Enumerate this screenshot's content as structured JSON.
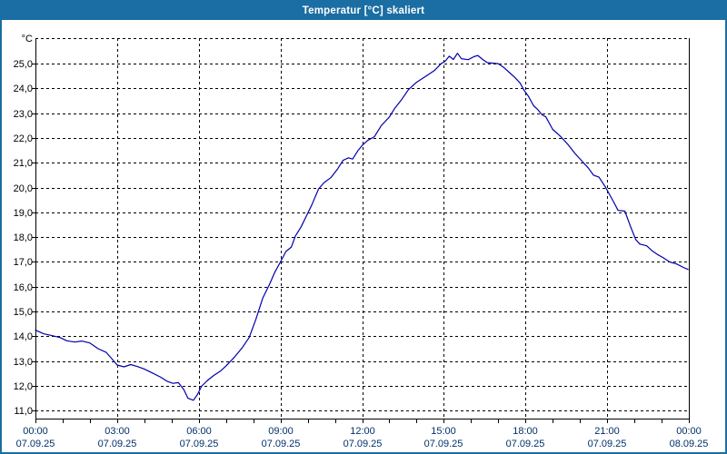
{
  "window": {
    "title": "Temperatur [°C] skaliert"
  },
  "colors": {
    "titlebar_bg": "#1b6ea3",
    "window_border": "#1b6ea3",
    "plot_bg": "#ffffff",
    "grid": "#000000",
    "frame": "#000000",
    "line": "#0000aa",
    "y_label": "#000000",
    "x_label": "#00306b",
    "title_text": "#ffffff"
  },
  "chart_data": {
    "type": "line",
    "title": "Temperatur [°C] skaliert",
    "y_unit": "°C",
    "xlabel": "",
    "ylabel": "",
    "ylim": [
      10.68,
      26.03
    ],
    "xlim_hours": [
      0,
      24
    ],
    "grid": "dashed",
    "legend": "none",
    "y_ticks": [
      {
        "value": 25,
        "label": "25,0"
      },
      {
        "value": 24,
        "label": "24,0"
      },
      {
        "value": 23,
        "label": "23,0"
      },
      {
        "value": 22,
        "label": "22,0"
      },
      {
        "value": 21,
        "label": "21,0"
      },
      {
        "value": 20,
        "label": "20,0"
      },
      {
        "value": 19,
        "label": "19,0"
      },
      {
        "value": 18,
        "label": "18,0"
      },
      {
        "value": 17,
        "label": "17,0"
      },
      {
        "value": 16,
        "label": "16,0"
      },
      {
        "value": 15,
        "label": "15,0"
      },
      {
        "value": 14,
        "label": "14,0"
      },
      {
        "value": 13,
        "label": "13,0"
      },
      {
        "value": 12,
        "label": "12,0"
      },
      {
        "value": 11,
        "label": "11,0"
      }
    ],
    "x_ticks": [
      {
        "hour": 0,
        "time": "00:00",
        "date": "07.09.25"
      },
      {
        "hour": 3,
        "time": "03:00",
        "date": "07.09.25"
      },
      {
        "hour": 6,
        "time": "06:00",
        "date": "07.09.25"
      },
      {
        "hour": 9,
        "time": "09:00",
        "date": "07.09.25"
      },
      {
        "hour": 12,
        "time": "12:00",
        "date": "07.09.25"
      },
      {
        "hour": 15,
        "time": "15:00",
        "date": "07.09.25"
      },
      {
        "hour": 18,
        "time": "18:00",
        "date": "07.09.25"
      },
      {
        "hour": 21,
        "time": "21:00",
        "date": "07.09.25"
      },
      {
        "hour": 24,
        "time": "00:00",
        "date": "08.09.25"
      }
    ],
    "minor_x_tick_every_hours": 1,
    "series": [
      {
        "name": "Temperatur",
        "color": "#0000aa",
        "points": [
          [
            0,
            14.25
          ],
          [
            0.3,
            14.1
          ],
          [
            0.6,
            14.03
          ],
          [
            0.9,
            13.95
          ],
          [
            1.15,
            13.82
          ],
          [
            1.45,
            13.77
          ],
          [
            1.7,
            13.81
          ],
          [
            2,
            13.73
          ],
          [
            2.3,
            13.5
          ],
          [
            2.6,
            13.35
          ],
          [
            2.8,
            13.1
          ],
          [
            3,
            12.84
          ],
          [
            3.25,
            12.77
          ],
          [
            3.5,
            12.86
          ],
          [
            3.75,
            12.78
          ],
          [
            4,
            12.68
          ],
          [
            4.3,
            12.52
          ],
          [
            4.6,
            12.35
          ],
          [
            4.85,
            12.18
          ],
          [
            5.05,
            12.1
          ],
          [
            5.25,
            12.13
          ],
          [
            5.45,
            11.85
          ],
          [
            5.6,
            11.5
          ],
          [
            5.8,
            11.42
          ],
          [
            5.95,
            11.65
          ],
          [
            6.1,
            11.98
          ],
          [
            6.3,
            12.2
          ],
          [
            6.55,
            12.42
          ],
          [
            6.8,
            12.6
          ],
          [
            7,
            12.8
          ],
          [
            7.3,
            13.15
          ],
          [
            7.6,
            13.55
          ],
          [
            7.85,
            13.95
          ],
          [
            8.1,
            14.7
          ],
          [
            8.35,
            15.55
          ],
          [
            8.6,
            16.1
          ],
          [
            8.8,
            16.6
          ],
          [
            9,
            17
          ],
          [
            9.2,
            17.42
          ],
          [
            9.4,
            17.6
          ],
          [
            9.55,
            18.05
          ],
          [
            9.75,
            18.4
          ],
          [
            9.95,
            18.85
          ],
          [
            10.15,
            19.3
          ],
          [
            10.4,
            19.95
          ],
          [
            10.6,
            20.2
          ],
          [
            10.85,
            20.4
          ],
          [
            11.1,
            20.75
          ],
          [
            11.3,
            21.1
          ],
          [
            11.5,
            21.2
          ],
          [
            11.65,
            21.15
          ],
          [
            11.85,
            21.5
          ],
          [
            12,
            21.7
          ],
          [
            12.2,
            21.9
          ],
          [
            12.45,
            22.05
          ],
          [
            12.7,
            22.5
          ],
          [
            13,
            22.85
          ],
          [
            13.2,
            23.2
          ],
          [
            13.45,
            23.55
          ],
          [
            13.7,
            23.95
          ],
          [
            14,
            24.25
          ],
          [
            14.35,
            24.5
          ],
          [
            14.65,
            24.72
          ],
          [
            14.9,
            25
          ],
          [
            15.05,
            25.1
          ],
          [
            15.2,
            25.3
          ],
          [
            15.35,
            25.17
          ],
          [
            15.5,
            25.42
          ],
          [
            15.65,
            25.2
          ],
          [
            15.9,
            25.16
          ],
          [
            16.1,
            25.28
          ],
          [
            16.25,
            25.33
          ],
          [
            16.45,
            25.15
          ],
          [
            16.6,
            25.04
          ],
          [
            17,
            25
          ],
          [
            17.2,
            24.85
          ],
          [
            17.45,
            24.6
          ],
          [
            17.6,
            24.45
          ],
          [
            17.8,
            24.22
          ],
          [
            17.95,
            23.92
          ],
          [
            18.1,
            23.7
          ],
          [
            18.3,
            23.3
          ],
          [
            18.45,
            23.15
          ],
          [
            18.6,
            22.95
          ],
          [
            18.75,
            22.85
          ],
          [
            19,
            22.35
          ],
          [
            19.3,
            22.05
          ],
          [
            19.55,
            21.75
          ],
          [
            19.8,
            21.4
          ],
          [
            20.05,
            21.1
          ],
          [
            20.3,
            20.8
          ],
          [
            20.5,
            20.5
          ],
          [
            20.7,
            20.42
          ],
          [
            20.95,
            20
          ],
          [
            21.05,
            19.8
          ],
          [
            21.25,
            19.4
          ],
          [
            21.4,
            19.08
          ],
          [
            21.65,
            19.05
          ],
          [
            21.85,
            18.45
          ],
          [
            22.05,
            17.9
          ],
          [
            22.2,
            17.72
          ],
          [
            22.45,
            17.65
          ],
          [
            22.65,
            17.45
          ],
          [
            22.85,
            17.3
          ],
          [
            23.05,
            17.18
          ],
          [
            23.3,
            17
          ],
          [
            23.55,
            16.92
          ],
          [
            23.8,
            16.78
          ],
          [
            23.97,
            16.7
          ]
        ]
      }
    ]
  }
}
